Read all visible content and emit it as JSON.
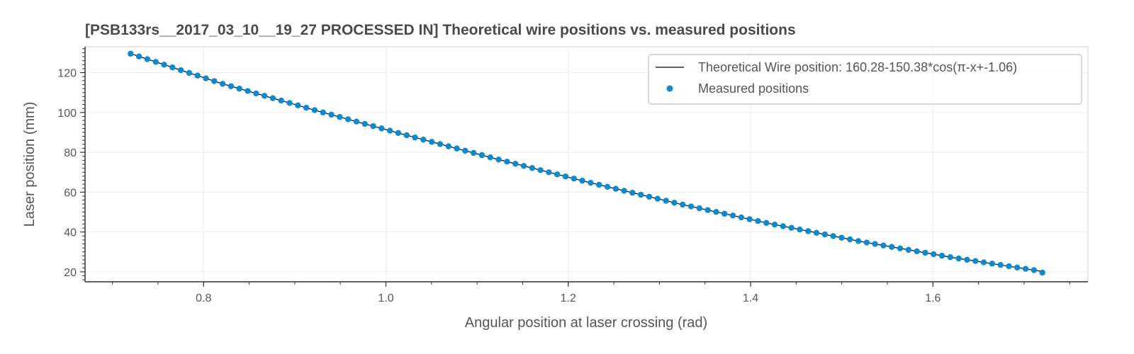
{
  "chart_data": {
    "type": "scatter",
    "title": "[PSB133rs__2017_03_10__19_27 PROCESSED  IN] Theoretical wire positions vs. measured positions",
    "xlabel": "Angular position at laser crossing (rad)",
    "ylabel": "Laser position (mm)",
    "xlim": [
      0.67,
      1.77
    ],
    "ylim": [
      15,
      133
    ],
    "xticks": [
      0.8,
      1.0,
      1.2,
      1.4,
      1.6
    ],
    "xtick_labels": [
      "0.8",
      "1.0",
      "1.2",
      "1.4",
      "1.6"
    ],
    "yticks": [
      20,
      40,
      60,
      80,
      100,
      120
    ],
    "ytick_labels": [
      "20",
      "40",
      "60",
      "80",
      "100",
      "120"
    ],
    "grid": true,
    "legend_position": "top-right",
    "series": [
      {
        "name": "Theoretical Wire position: 160.28-150.38*cos(π-x+-1.06)",
        "kind": "line",
        "color": "#000000",
        "x": [
          0.72,
          0.82,
          0.92,
          1.02,
          1.12,
          1.22,
          1.32,
          1.42,
          1.52,
          1.62,
          1.72
        ],
        "y": [
          129.5,
          114.5,
          101.4,
          88.9,
          76.8,
          65.2,
          54.3,
          44.3,
          35.3,
          27.3,
          20.2
        ]
      },
      {
        "name": "Measured positions",
        "kind": "scatter",
        "color": "#0a8ad0",
        "x_start": 0.72,
        "x_end": 1.72,
        "y_start": 129.5,
        "y_end": 19.6,
        "count": 110
      }
    ]
  }
}
